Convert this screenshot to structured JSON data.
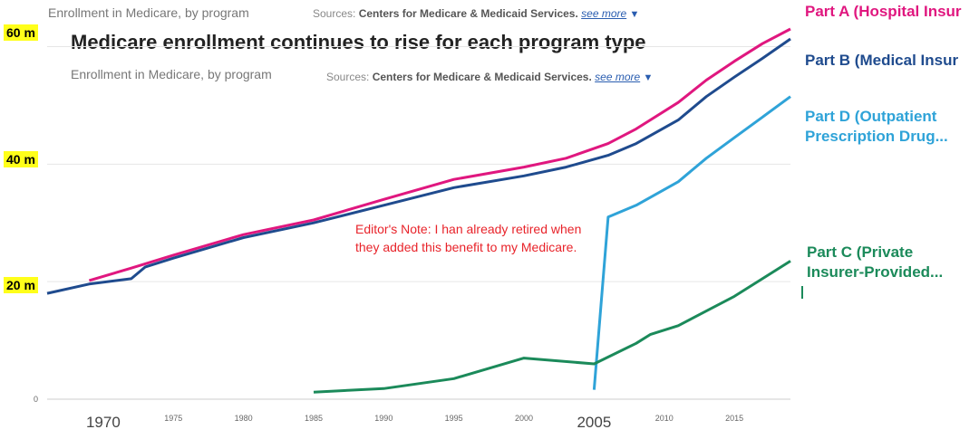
{
  "header": {
    "subtitle_top": "Enrollment in Medicare, by program",
    "sources_top_prefix": "Sources:",
    "sources_top_value": "Centers for Medicare & Medicaid Services.",
    "see_more_top": "see more",
    "title": "Medicare enrollment continues to rise for each program type",
    "subtitle": "Enrollment in Medicare, by program",
    "sources_prefix": "Sources:",
    "sources_value": "Centers for Medicare & Medicaid Services.",
    "see_more": "see more"
  },
  "y_badges": [
    "60 m",
    "40 m",
    "20 m"
  ],
  "zero_label": "0",
  "note": "Editor's Note: I han already retired when they added this benefit to my Medicare.",
  "chart_data": {
    "type": "line",
    "title": "Medicare enrollment continues to rise for each program type",
    "subtitle": "Enrollment in Medicare, by program",
    "xlabel": "",
    "ylabel": "",
    "xlim": [
      1966,
      2019
    ],
    "ylim": [
      0,
      63
    ],
    "grid": true,
    "x_tick_labels": [
      "1970",
      "1975",
      "1980",
      "1985",
      "1990",
      "1995",
      "2000",
      "2005",
      "2010",
      "2015"
    ],
    "x_tick_emphasized": [
      "1970",
      "2005"
    ],
    "y_tick_labels": [
      "0",
      "20 m",
      "40 m",
      "60 m"
    ],
    "series": [
      {
        "name": "Part A (Hospital Insur",
        "color": "#e0177f",
        "x": [
          1969,
          1972,
          1975,
          1980,
          1985,
          1990,
          1995,
          2000,
          2003,
          2006,
          2008,
          2011,
          2013,
          2015,
          2017,
          2019
        ],
        "y": [
          20.2,
          22.3,
          24.5,
          28.0,
          30.5,
          34.0,
          37.4,
          39.5,
          41.0,
          43.5,
          46.0,
          50.5,
          54.3,
          57.5,
          60.5,
          63.0
        ]
      },
      {
        "name": "Part B (Medical Insur",
        "color": "#1f4b8e",
        "x": [
          1966,
          1969,
          1972,
          1973,
          1975,
          1980,
          1985,
          1990,
          1995,
          2000,
          2003,
          2006,
          2008,
          2011,
          2013,
          2015,
          2017,
          2019
        ],
        "y": [
          18.0,
          19.6,
          20.5,
          22.5,
          24.0,
          27.5,
          30.0,
          33.0,
          36.0,
          38.0,
          39.5,
          41.5,
          43.5,
          47.5,
          51.5,
          54.8,
          58.0,
          61.3
        ]
      },
      {
        "name": "Part D (Outpatient Prescription Drug...",
        "color": "#2fa3d8",
        "x": [
          2005,
          2006,
          2008,
          2011,
          2013,
          2015,
          2017,
          2019
        ],
        "y": [
          1.6,
          31.0,
          33.0,
          37.0,
          41.0,
          44.5,
          48.0,
          51.5
        ]
      },
      {
        "name": "Part C (Private Insurer-Provided...",
        "color": "#1b8a5a",
        "x": [
          1985,
          1990,
          1995,
          2000,
          2005,
          2008,
          2009,
          2011,
          2013,
          2015,
          2017,
          2019
        ],
        "y": [
          1.2,
          1.8,
          3.5,
          7.0,
          6.0,
          9.5,
          11.0,
          12.5,
          15.0,
          17.5,
          20.5,
          23.5
        ]
      }
    ]
  }
}
